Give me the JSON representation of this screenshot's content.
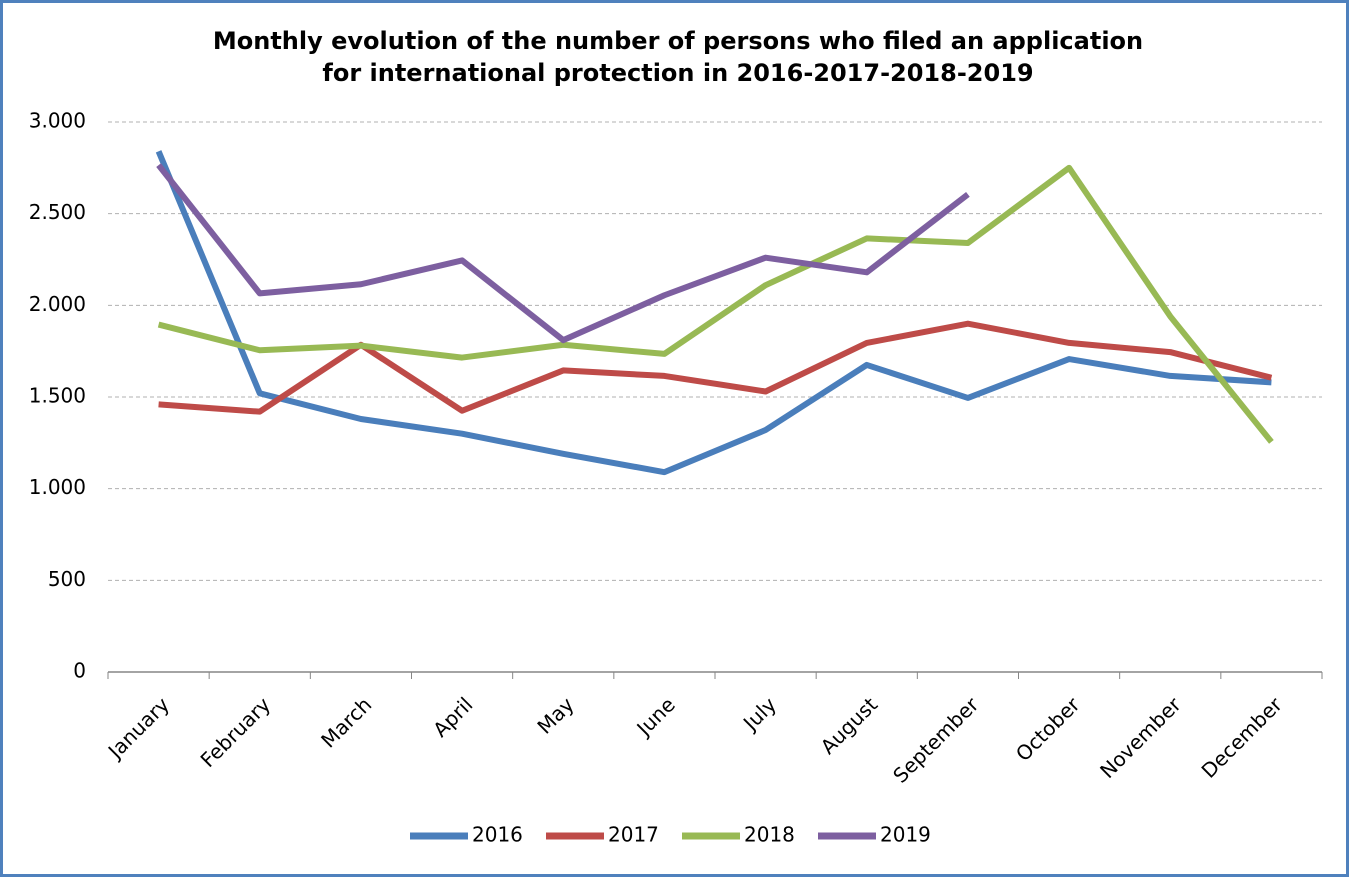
{
  "chart_data": {
    "type": "line",
    "title": [
      "Monthly evolution of the number of persons who filed an application",
      "for international protection in 2016-2017-2018-2019"
    ],
    "categories": [
      "January",
      "February",
      "March",
      "April",
      "May",
      "June",
      "July",
      "August",
      "September",
      "October",
      "November",
      "December"
    ],
    "series": [
      {
        "name": "2016",
        "color": "#4a7ebb",
        "values": [
          2840,
          1520,
          1380,
          1300,
          1190,
          1090,
          1320,
          1675,
          1495,
          1707,
          1615,
          1580
        ]
      },
      {
        "name": "2017",
        "color": "#be4b48",
        "values": [
          1460,
          1420,
          1785,
          1425,
          1645,
          1615,
          1530,
          1795,
          1900,
          1795,
          1745,
          1605
        ]
      },
      {
        "name": "2018",
        "color": "#98b954",
        "values": [
          1895,
          1755,
          1780,
          1715,
          1785,
          1735,
          2110,
          2365,
          2340,
          2750,
          1940,
          1255
        ]
      },
      {
        "name": "2019",
        "color": "#7d5fa0",
        "values": [
          2765,
          2065,
          2115,
          2245,
          1810,
          2055,
          2260,
          2180,
          2605,
          null,
          null,
          null
        ]
      }
    ],
    "ylim": [
      0,
      3000
    ],
    "yticks": [
      0,
      500,
      {
        "value": 1000,
        "label": "1.000"
      },
      {
        "value": 1500,
        "label": "1.500"
      },
      {
        "value": 2000,
        "label": "2.000"
      },
      {
        "value": 2500,
        "label": "2.500"
      },
      {
        "value": 3000,
        "label": "3.000"
      }
    ],
    "grid": true,
    "legend": "bottom"
  }
}
